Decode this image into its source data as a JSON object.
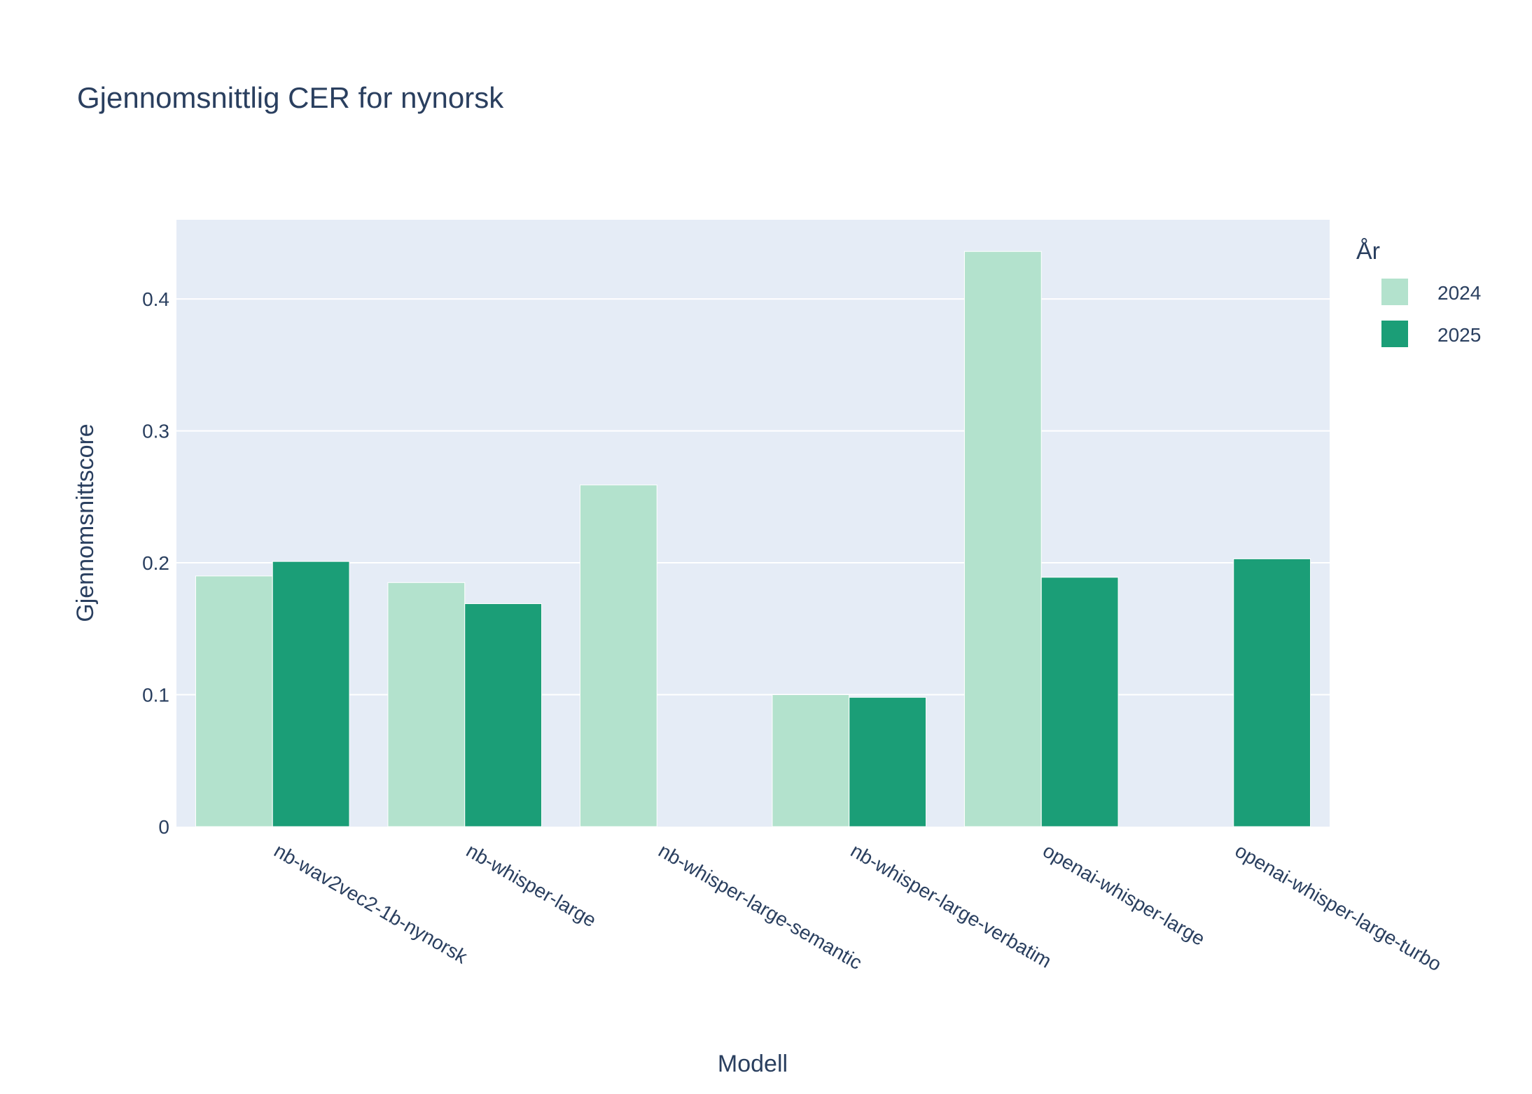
{
  "chart_data": {
    "type": "bar",
    "title": "Gjennomsnittlig CER for nynorsk",
    "xlabel": "Modell",
    "ylabel": "Gjennomsnittscore",
    "ylim": [
      0,
      0.46
    ],
    "yticks": [
      0,
      0.1,
      0.2,
      0.3,
      0.4
    ],
    "ytick_labels": [
      "0",
      "0.1",
      "0.2",
      "0.3",
      "0.4"
    ],
    "grid": true,
    "legend": {
      "title": "År",
      "placement": "top-right"
    },
    "categories": [
      "nb-wav2vec2-1b-nynorsk",
      "nb-whisper-large",
      "nb-whisper-large-semantic",
      "nb-whisper-large-verbatim",
      "openai-whisper-large",
      "openai-whisper-large-turbo"
    ],
    "series": [
      {
        "name": "2024",
        "color": "#b3e2cd",
        "values": [
          0.19,
          0.185,
          0.259,
          0.1,
          0.436,
          null
        ]
      },
      {
        "name": "2025",
        "color": "#1b9e77",
        "values": [
          0.201,
          0.169,
          null,
          0.098,
          0.189,
          0.203
        ]
      }
    ],
    "plot_background": "#e5ecf6",
    "gridline_color": "#ffffff",
    "text_color": "#2a3f5f"
  }
}
